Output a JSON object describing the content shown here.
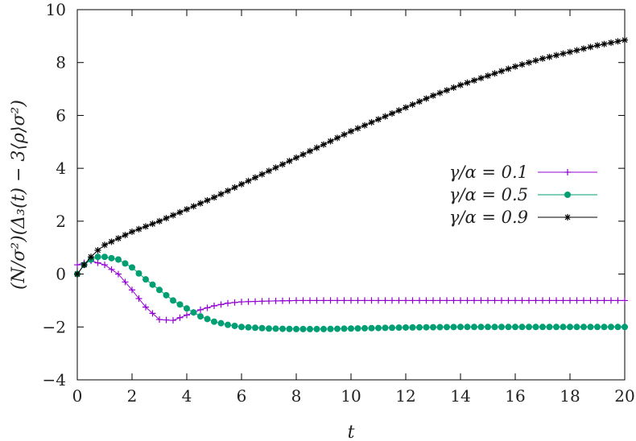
{
  "chart_data": {
    "type": "line",
    "xlabel": "t",
    "ylabel": "(N/σ²)(Δ₃(t) − 3⟨ρ⟩σ²)",
    "xlim": [
      0,
      20
    ],
    "ylim": [
      -4,
      10
    ],
    "x_ticks": [
      "0",
      "2",
      "4",
      "6",
      "8",
      "10",
      "12",
      "14",
      "16",
      "18",
      "20"
    ],
    "y_ticks": [
      "−4",
      "−2",
      "0",
      "2",
      "4",
      "6",
      "8",
      "10"
    ],
    "grid": false,
    "legend_position": "right-middle",
    "series": [
      {
        "name": "γ/α = 0.1",
        "color": "#9400d3",
        "marker": "plus",
        "x": [
          0,
          0.5,
          1,
          1.5,
          2,
          2.5,
          3,
          3.5,
          4,
          4.5,
          5,
          5.5,
          6,
          7,
          8,
          9,
          10,
          12,
          14,
          16,
          18,
          20
        ],
        "y": [
          0.35,
          0.5,
          0.35,
          0.0,
          -0.6,
          -1.25,
          -1.72,
          -1.75,
          -1.55,
          -1.35,
          -1.2,
          -1.1,
          -1.05,
          -1.02,
          -1.0,
          -1.0,
          -1.0,
          -1.0,
          -1.0,
          -1.0,
          -1.0,
          -1.0
        ]
      },
      {
        "name": "γ/α = 0.5",
        "color": "#009e73",
        "marker": "circle",
        "x": [
          0,
          0.25,
          0.5,
          0.75,
          1,
          1.5,
          2,
          2.5,
          3,
          3.5,
          4,
          4.5,
          5,
          5.5,
          6,
          7,
          8,
          9,
          10,
          11,
          12,
          14,
          16,
          18,
          20
        ],
        "y": [
          0.0,
          0.35,
          0.55,
          0.65,
          0.65,
          0.55,
          0.25,
          -0.2,
          -0.6,
          -1.0,
          -1.3,
          -1.6,
          -1.8,
          -1.92,
          -2.0,
          -2.06,
          -2.08,
          -2.08,
          -2.06,
          -2.04,
          -2.02,
          -2.0,
          -2.0,
          -2.0,
          -2.0
        ]
      },
      {
        "name": "γ/α = 0.9",
        "color": "#000000",
        "marker": "star",
        "x": [
          0,
          0.25,
          0.5,
          0.75,
          1,
          1.5,
          2,
          3,
          4,
          5,
          6,
          7,
          8,
          9,
          10,
          11,
          12,
          13,
          14,
          15,
          16,
          17,
          18,
          19,
          20
        ],
        "y": [
          0.0,
          0.35,
          0.65,
          0.9,
          1.1,
          1.35,
          1.6,
          2.0,
          2.45,
          2.9,
          3.4,
          3.9,
          4.4,
          4.9,
          5.4,
          5.85,
          6.3,
          6.75,
          7.15,
          7.5,
          7.85,
          8.15,
          8.4,
          8.65,
          8.85
        ]
      }
    ]
  }
}
